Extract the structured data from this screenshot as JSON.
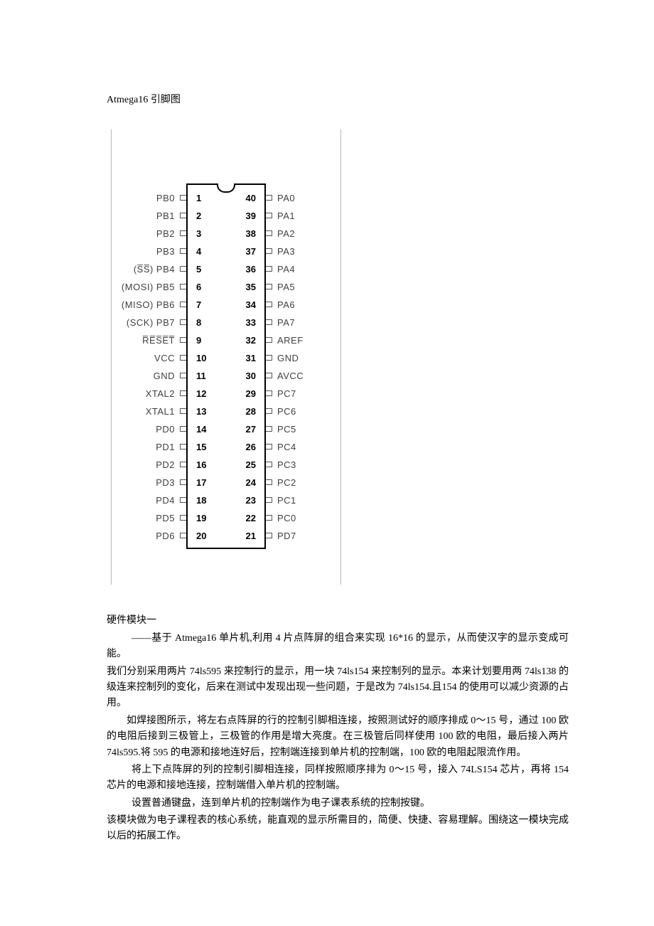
{
  "title": "Atmega16 引脚图",
  "diagram": {
    "left_labels": [
      "PB0",
      "PB1",
      "PB2",
      "PB3",
      "(S̅S̅)  PB4",
      "(MOSI)  PB5",
      "(MISO)  PB6",
      "(SCK)  PB7",
      "R̅E̅S̅E̅T̅",
      "VCC",
      "GND",
      "XTAL2",
      "XTAL1",
      "PD0",
      "PD1",
      "PD2",
      "PD3",
      "PD4",
      "PD5",
      "PD6"
    ],
    "left_nums": [
      "1",
      "2",
      "3",
      "4",
      "5",
      "6",
      "7",
      "8",
      "9",
      "10",
      "11",
      "12",
      "13",
      "14",
      "15",
      "16",
      "17",
      "18",
      "19",
      "20"
    ],
    "right_nums": [
      "40",
      "39",
      "38",
      "37",
      "36",
      "35",
      "34",
      "33",
      "32",
      "31",
      "30",
      "29",
      "28",
      "27",
      "26",
      "25",
      "24",
      "23",
      "22",
      "21"
    ],
    "right_labels": [
      "PA0",
      "PA1",
      "PA2",
      "PA3",
      "PA4",
      "PA5",
      "PA6",
      "PA7",
      "AREF",
      "GND",
      "AVCC",
      "PC7",
      "PC6",
      "PC5",
      "PC4",
      "PC3",
      "PC2",
      "PC1",
      "PC0",
      "PD7"
    ]
  },
  "para_heading": "硬件模块一",
  "para1": "——基于 Atmega16 单片机,利用 4 片点阵屏的组合来实现 16*16 的显示，从而使汉字的显示变成可能。",
  "para2": "我们分别采用两片 74ls595 来控制行的显示，用一块 74ls154 来控制列的显示。本来计划要用两 74ls138 的级连来控制列的变化，后来在测试中发现出现一些问题，于是改为 74ls154.且154 的使用可以减少资源的占用。",
  "para3": "如焊接图所示，将左右点阵屏的行的控制引脚相连接，按照测试好的顺序排成 0～15 号，通过 100 欧的电阻后接到三极管上，三极管的作用是增大亮度。在三极管后同样使用 100 欧的电阻，最后接入两片 74ls595.将 595 的电源和接地连好后，控制端连接到单片机的控制端，100 欧的电阻起限流作用。",
  "para4": "将上下点阵屏的列的控制引脚相连接，同样按照顺序排为 0～15 号，接入 74LS154 芯片，再将 154 芯片的电源和接地连接，控制端借入单片机的控制端。",
  "para5": "设置普通键盘，连到单片机的控制端作为电子课表系统的控制按键。",
  "para6": "该模块做为电子课程表的核心系统，能直观的显示所需目的，简便、快捷、容易理解。围绕这一模块完成以后的拓展工作。"
}
